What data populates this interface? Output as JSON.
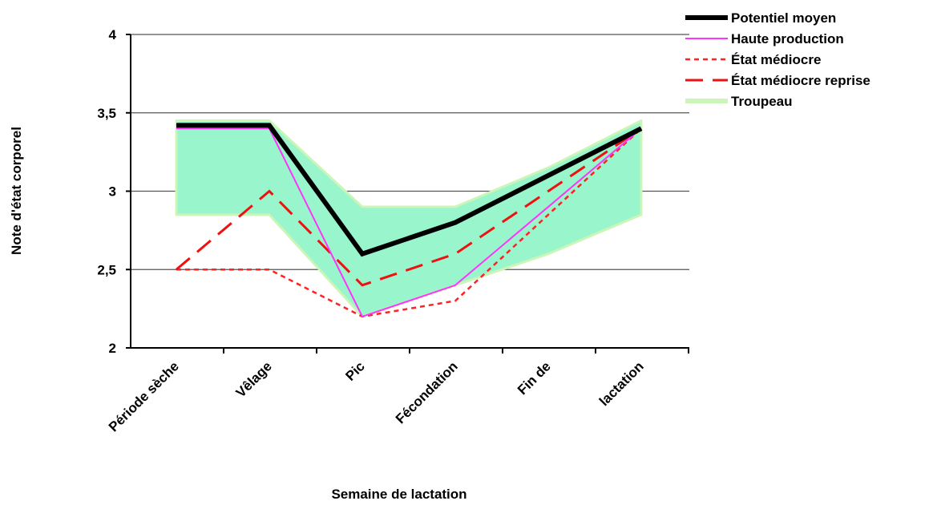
{
  "chart_data": {
    "type": "line",
    "title": "",
    "xlabel": "Semaine de lactation",
    "ylabel": "Note d'état corporel",
    "ylim": [
      2,
      4
    ],
    "yticks": [
      "2",
      "2,5",
      "3",
      "3,5",
      "4"
    ],
    "categories": [
      "Période sèche",
      "Vêlage",
      "Pic",
      "Fécondation",
      "Fin de",
      "lactation"
    ],
    "grid": "horizontal",
    "legend_position": "top-right",
    "series": [
      {
        "name": "Potentiel moyen",
        "values": [
          3.42,
          3.42,
          2.6,
          2.8,
          3.1,
          3.4
        ],
        "color": "#000000",
        "style": "solid-thick"
      },
      {
        "name": "Haute production",
        "values": [
          3.4,
          3.4,
          2.2,
          2.4,
          2.9,
          3.4
        ],
        "color": "#ff33ff",
        "style": "solid"
      },
      {
        "name": "État médiocre",
        "values": [
          2.5,
          2.5,
          2.2,
          2.3,
          2.85,
          3.4
        ],
        "color": "#ff2222",
        "style": "short-dash"
      },
      {
        "name": "État médiocre reprise",
        "values": [
          2.5,
          3.0,
          2.4,
          2.6,
          3.0,
          3.4
        ],
        "color": "#ee1111",
        "style": "long-dash"
      },
      {
        "name": "Troupeau",
        "type": "band",
        "lower": [
          2.85,
          2.85,
          2.2,
          2.4,
          2.6,
          2.85
        ],
        "upper": [
          3.45,
          3.45,
          2.9,
          2.9,
          3.15,
          3.45
        ],
        "color": "#99f5cc"
      }
    ]
  }
}
